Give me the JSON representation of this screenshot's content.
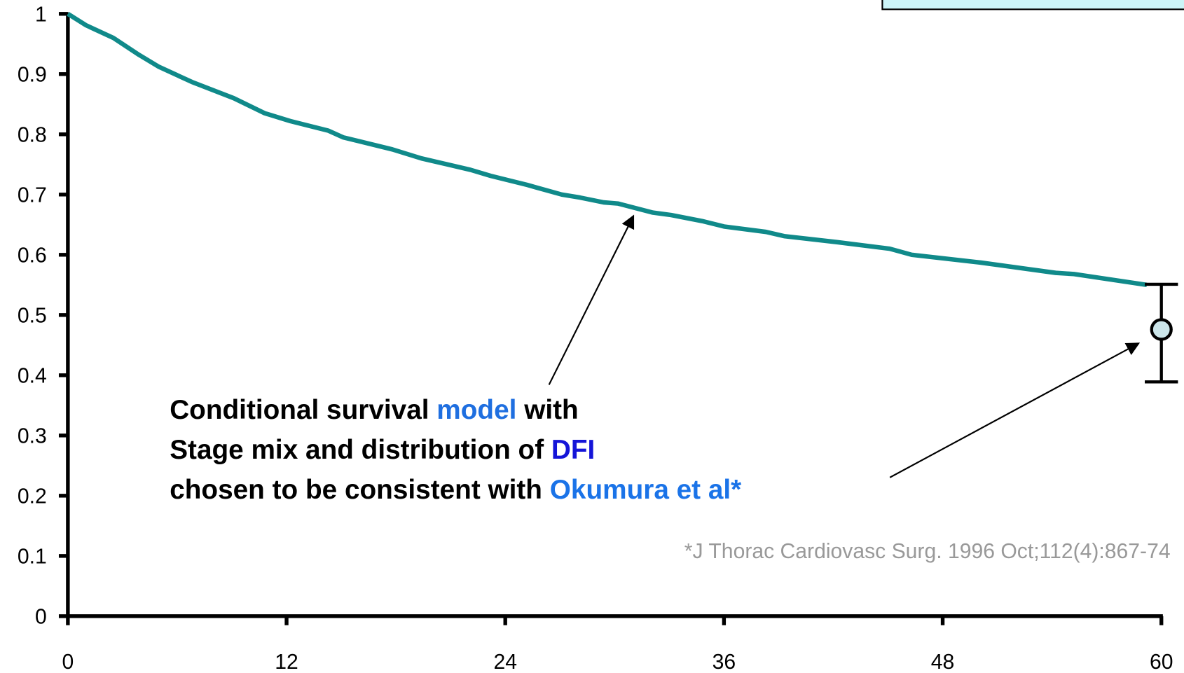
{
  "chart_data": {
    "type": "line",
    "x": [
      0,
      1,
      2.5,
      3.9,
      5,
      6.8,
      9.1,
      10.8,
      12.2,
      14.3,
      15.1,
      17.8,
      19.4,
      22.1,
      23.2,
      25.2,
      27.1,
      28.1,
      29.4,
      30.2,
      32.1,
      33.1,
      34.8,
      36,
      38.3,
      39.3,
      42.2,
      45.1,
      46.3,
      50.1,
      54.2,
      55.2,
      59.2
    ],
    "series": [
      {
        "color": "#108a8a",
        "values": [
          1,
          0.981,
          0.96,
          0.932,
          0.912,
          0.887,
          0.86,
          0.835,
          0.822,
          0.806,
          0.795,
          0.775,
          0.76,
          0.741,
          0.731,
          0.716,
          0.7,
          0.695,
          0.687,
          0.685,
          0.67,
          0.666,
          0.656,
          0.647,
          0.638,
          0.631,
          0.621,
          0.61,
          0.6,
          0.587,
          0.57,
          0.568,
          0.55
        ]
      }
    ],
    "point": {
      "x": 60,
      "value": 0.476,
      "low": 0.389,
      "high": 0.551,
      "color": "#cce6ea"
    },
    "xlim": [
      0,
      60
    ],
    "xticks": [
      0,
      12,
      24,
      36,
      48,
      60
    ],
    "ylim": [
      0,
      1
    ],
    "yticks": [
      0,
      0.1,
      0.2,
      0.3,
      0.4,
      0.5,
      0.6,
      0.7,
      0.8,
      0.9,
      1
    ],
    "annotation": [
      [
        {
          "text": "Conditional survival ",
          "color": "#000000"
        },
        {
          "text": "model",
          "color": "#1f6fe0"
        },
        {
          "text": " with",
          "color": "#000000"
        }
      ],
      [
        {
          "text": "Stage mix and distribution of ",
          "color": "#000000"
        },
        {
          "text": "DFI",
          "color": "#1414d8"
        }
      ],
      [
        {
          "text": "chosen to be consistent with ",
          "color": "#000000"
        },
        {
          "text": "Okumura et al*",
          "color": "#1a73e8"
        }
      ]
    ],
    "citation": "*J Thorac Cardiovasc Surg. 1996 Oct;112(4):867-74"
  }
}
